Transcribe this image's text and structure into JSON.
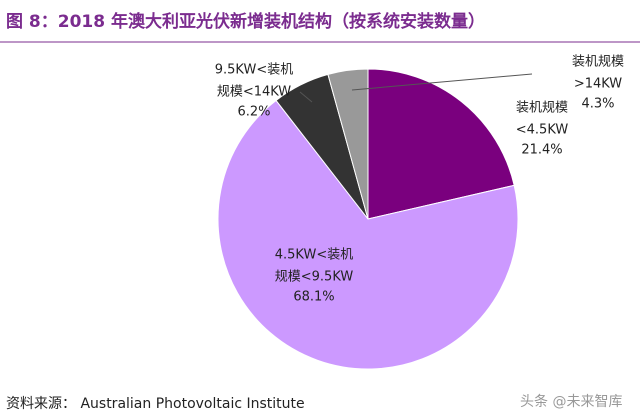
{
  "chart_data": {
    "type": "pie",
    "title": "图 8：2018 年澳大利亚光伏新增装机结构（按系统安装数量）",
    "source": "资料来源： Australian Photovoltaic Institute",
    "watermark": "头条 @未来智库",
    "categories": [
      [
        "装机规模",
        "<4.5KW"
      ],
      [
        "4.5KW<装机",
        "规模<9.5KW"
      ],
      [
        "9.5KW<装机",
        "规模<14KW"
      ],
      [
        "装机规模",
        ">14KW"
      ]
    ],
    "values": [
      21.4,
      68.1,
      6.2,
      4.3
    ],
    "value_labels": [
      "21.4%",
      "68.1%",
      "6.2%",
      "4.3%"
    ],
    "colors": [
      "#7a007e",
      "#cc99ff",
      "#333333",
      "#999999"
    ]
  }
}
